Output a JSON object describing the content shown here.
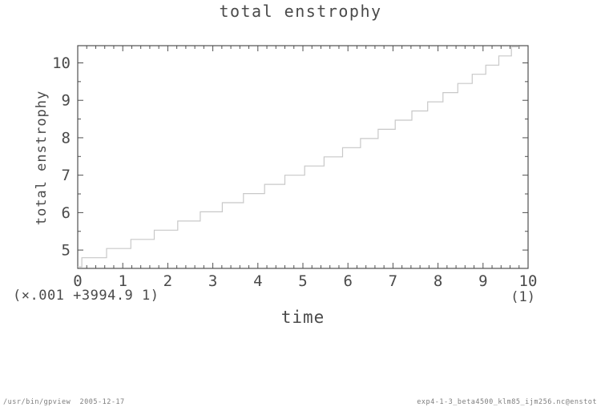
{
  "header": {
    "title": "total enstrophy"
  },
  "axes": {
    "x_label": "time",
    "y_label": "total enstrophy",
    "x_tick_labels": [
      "0",
      "1",
      "2",
      "3",
      "4",
      "5",
      "6",
      "7",
      "8",
      "9",
      "10"
    ],
    "y_tick_labels": [
      "5",
      "6",
      "7",
      "8",
      "9",
      "10"
    ],
    "scale_note_left": "(×.001 +3994.9 1)",
    "scale_note_right": "(1)"
  },
  "footer": {
    "left": "/usr/bin/gpview  2005-12-17",
    "right": "exp4-1-3_beta4500_klm85_ijm256.nc@enstot"
  },
  "colors": {
    "axis": "#4f4f4f",
    "text": "#4a4a4a",
    "series_line": "#c8c8c8",
    "footer_text": "#7d7d7d",
    "background": "#ffffff"
  },
  "chart_data": {
    "type": "line",
    "line_style": "step",
    "title": "total enstrophy",
    "xlabel": "time",
    "ylabel": "total enstrophy",
    "xlim": [
      0,
      10
    ],
    "ylim": [
      4.51,
      10.46
    ],
    "x_major_ticks": [
      0,
      1,
      2,
      3,
      4,
      5,
      6,
      7,
      8,
      9,
      10
    ],
    "x_minor_interval": 0.2,
    "y_major_ticks": [
      5,
      6,
      7,
      8,
      9,
      10
    ],
    "y_minor_interval": 0.5,
    "grid": false,
    "legend_position": "none",
    "y_scale_note": "(×.001 +3994.9 1)",
    "x_unit_note": "(1)",
    "series": [
      {
        "name": "total enstrophy",
        "points": [
          [
            0,
            4.55
          ],
          [
            0.09,
            4.55
          ],
          [
            0.09,
            4.795
          ],
          [
            0.64,
            4.795
          ],
          [
            0.64,
            5.04
          ],
          [
            1.18,
            5.04
          ],
          [
            1.18,
            5.285
          ],
          [
            1.7,
            5.285
          ],
          [
            1.7,
            5.53
          ],
          [
            2.22,
            5.53
          ],
          [
            2.22,
            5.775
          ],
          [
            2.72,
            5.775
          ],
          [
            2.72,
            6.02
          ],
          [
            3.21,
            6.02
          ],
          [
            3.21,
            6.265
          ],
          [
            3.68,
            6.265
          ],
          [
            3.68,
            6.51
          ],
          [
            4.15,
            6.51
          ],
          [
            4.15,
            6.755
          ],
          [
            4.6,
            6.755
          ],
          [
            4.6,
            7.0
          ],
          [
            5.04,
            7.0
          ],
          [
            5.04,
            7.245
          ],
          [
            5.47,
            7.245
          ],
          [
            5.47,
            7.49
          ],
          [
            5.88,
            7.49
          ],
          [
            5.88,
            7.735
          ],
          [
            6.28,
            7.735
          ],
          [
            6.28,
            7.98
          ],
          [
            6.67,
            7.98
          ],
          [
            6.67,
            8.225
          ],
          [
            7.05,
            8.225
          ],
          [
            7.05,
            8.47
          ],
          [
            7.42,
            8.47
          ],
          [
            7.42,
            8.715
          ],
          [
            7.77,
            8.715
          ],
          [
            7.77,
            8.96
          ],
          [
            8.11,
            8.96
          ],
          [
            8.11,
            9.205
          ],
          [
            8.44,
            9.205
          ],
          [
            8.44,
            9.45
          ],
          [
            8.76,
            9.45
          ],
          [
            8.76,
            9.695
          ],
          [
            9.06,
            9.695
          ],
          [
            9.06,
            9.94
          ],
          [
            9.35,
            9.94
          ],
          [
            9.35,
            10.185
          ],
          [
            9.63,
            10.185
          ],
          [
            9.63,
            10.43
          ],
          [
            9.8,
            10.43
          ]
        ]
      }
    ]
  }
}
